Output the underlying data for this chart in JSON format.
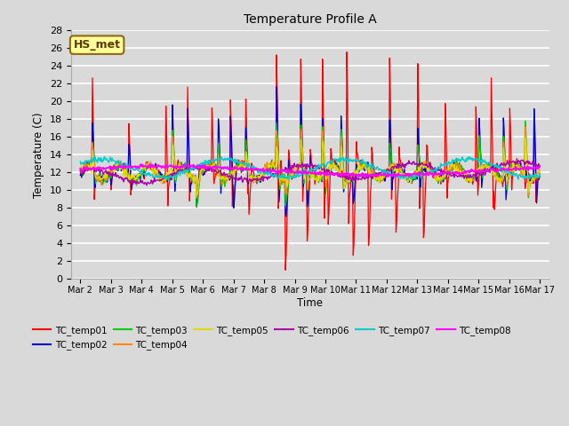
{
  "title": "Temperature Profile A",
  "xlabel": "Time",
  "ylabel": "Temperature (C)",
  "ylim": [
    0,
    28
  ],
  "annotation_text": "HS_met",
  "annotation_box_color": "#ffff99",
  "annotation_box_edge": "#8B6914",
  "series_colors": {
    "TC_temp01": "#ff0000",
    "TC_temp02": "#0000cc",
    "TC_temp03": "#00cc00",
    "TC_temp04": "#ff8800",
    "TC_temp05": "#dddd00",
    "TC_temp06": "#aa00aa",
    "TC_temp07": "#00cccc",
    "TC_temp08": "#ff00ff"
  },
  "x_tick_labels": [
    "Mar 2",
    "Mar 3",
    "Mar 4",
    "Mar 5",
    "Mar 6",
    "Mar 7",
    "Mar 8",
    "Mar 9",
    "Mar 10",
    "Mar 11",
    "Mar 12",
    "Mar 13",
    "Mar 14",
    "Mar 15",
    "Mar 16",
    "Mar 17"
  ],
  "background_color": "#d9d9d9",
  "plot_bg_color": "#d9d9d9",
  "grid_color": "#ffffff",
  "figsize": [
    6.4,
    4.8
  ],
  "dpi": 100
}
